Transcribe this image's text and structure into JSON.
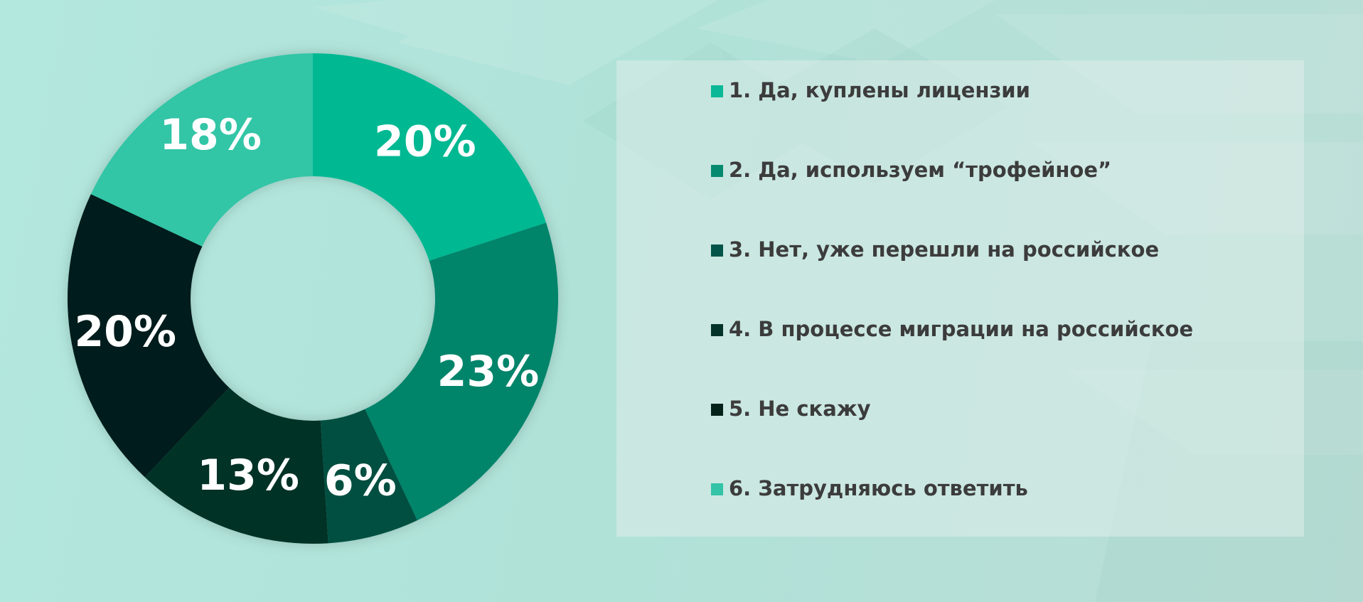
{
  "chart_data": {
    "type": "pie",
    "donut": true,
    "title": "",
    "categories": [
      "1. Да, куплены лицензии",
      "2. Да, используем “трофейное”",
      "3. Нет, уже перешли на российское",
      "4. В процессе миграции на российское",
      "5. Не скажу",
      "6. Затрудняюсь ответить"
    ],
    "values": [
      20,
      23,
      6,
      13,
      20,
      18
    ],
    "value_labels": [
      "20%",
      "23%",
      "6%",
      "13%",
      "20%",
      "18%"
    ],
    "colors": [
      "#06b892",
      "#02846a",
      "#005040",
      "#003126",
      "#021f1a",
      "#31c5a6"
    ],
    "legend_placement": "right",
    "grid": false
  },
  "legend": {
    "swatch_colors": [
      "#0ab897",
      "#058a6f",
      "#04544a",
      "#033329",
      "#042219",
      "#33c3a7"
    ]
  }
}
